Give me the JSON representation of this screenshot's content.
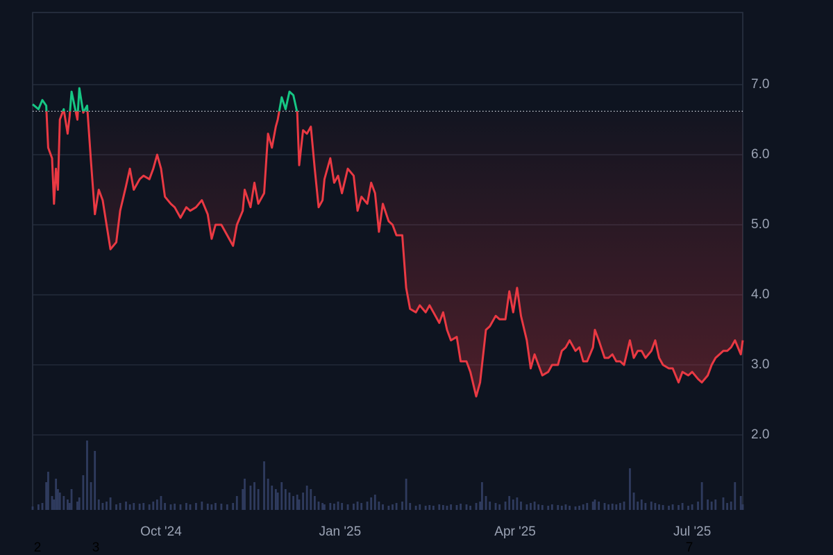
{
  "chart_data": {
    "type": "line",
    "x": [
      0,
      3,
      5,
      7,
      8,
      10,
      11,
      12,
      13,
      14,
      16,
      18,
      19,
      20,
      23,
      24,
      26,
      28,
      30,
      32,
      34,
      36,
      38,
      40,
      43,
      45,
      48,
      50,
      52,
      55,
      57,
      60,
      62,
      64,
      66,
      68,
      71,
      73,
      76,
      79,
      81,
      84,
      87,
      90,
      92,
      94,
      97,
      100,
      103,
      105,
      108,
      109,
      112,
      114,
      116,
      119,
      121,
      123,
      125,
      126,
      128,
      130,
      132,
      134,
      136,
      137,
      139,
      141,
      143,
      145,
      147,
      149,
      150,
      153,
      155,
      157,
      159,
      162,
      165,
      167,
      169,
      172,
      174,
      176,
      178,
      180,
      183,
      185,
      187,
      190,
      192,
      194,
      197,
      199,
      202,
      204,
      206,
      209,
      211,
      213,
      215,
      218,
      220,
      223,
      225,
      228,
      230,
      231,
      233,
      235,
      238,
      240,
      243,
      245,
      247,
      249,
      251,
      254,
      256,
      258,
      260,
      262,
      265,
      267,
      270,
      272,
      274,
      276,
      279,
      281,
      283,
      285,
      288,
      289,
      291,
      294,
      296,
      298,
      300,
      302,
      304,
      307,
      309,
      311,
      313,
      315,
      318,
      320,
      322,
      324,
      327,
      329,
      332,
      334,
      337,
      339,
      342,
      344,
      347,
      349,
      351,
      355,
      357,
      359,
      361,
      364,
      365
    ],
    "series": [
      {
        "values": [
          6.72,
          6.65,
          6.78,
          6.7,
          6.1,
          5.95,
          5.3,
          5.8,
          5.5,
          6.5,
          6.65,
          6.3,
          6.55,
          6.9,
          6.5,
          6.95,
          6.6,
          6.7,
          5.9,
          5.15,
          5.5,
          5.35,
          5.0,
          4.65,
          4.75,
          5.2,
          5.55,
          5.8,
          5.5,
          5.65,
          5.7,
          5.65,
          5.8,
          6.0,
          5.8,
          5.4,
          5.3,
          5.25,
          5.1,
          5.25,
          5.2,
          5.25,
          5.35,
          5.15,
          4.8,
          5.0,
          5.0,
          4.85,
          4.7,
          5.0,
          5.2,
          5.5,
          5.25,
          5.6,
          5.3,
          5.45,
          6.3,
          6.1,
          6.4,
          6.5,
          6.82,
          6.65,
          6.9,
          6.85,
          6.6,
          5.85,
          6.35,
          6.3,
          6.4,
          5.8,
          5.25,
          5.35,
          5.65,
          5.95,
          5.6,
          5.7,
          5.45,
          5.8,
          5.7,
          5.2,
          5.4,
          5.3,
          5.6,
          5.45,
          4.9,
          5.3,
          5.05,
          5.0,
          4.85,
          4.85,
          4.1,
          3.8,
          3.75,
          3.85,
          3.75,
          3.85,
          3.75,
          3.6,
          3.75,
          3.5,
          3.35,
          3.4,
          3.05,
          3.05,
          2.9,
          2.55,
          2.75,
          3.0,
          3.5,
          3.55,
          3.7,
          3.65,
          3.65,
          4.05,
          3.75,
          4.1,
          3.7,
          3.35,
          2.95,
          3.15,
          3.0,
          2.85,
          2.9,
          3.0,
          3.0,
          3.2,
          3.25,
          3.35,
          3.2,
          3.25,
          3.05,
          3.05,
          3.25,
          3.5,
          3.35,
          3.1,
          3.1,
          3.15,
          3.05,
          3.05,
          3.0,
          3.35,
          3.1,
          3.2,
          3.2,
          3.1,
          3.2,
          3.35,
          3.1,
          3.0,
          2.95,
          2.95,
          2.75,
          2.9,
          2.85,
          2.9,
          2.8,
          2.75,
          2.85,
          3.0,
          3.1,
          3.2,
          3.2,
          3.25,
          3.35,
          3.15,
          3.35
        ]
      }
    ],
    "volume": [
      5,
      8,
      10,
      40,
      55,
      20,
      15,
      45,
      30,
      25,
      20,
      15,
      10,
      30,
      12,
      18,
      50,
      100,
      40,
      85,
      15,
      10,
      12,
      18,
      8,
      10,
      12,
      8,
      10,
      9,
      10,
      8,
      12,
      15,
      20,
      10,
      8,
      9,
      8,
      10,
      8,
      10,
      12,
      9,
      8,
      10,
      9,
      8,
      10,
      20,
      30,
      45,
      35,
      40,
      30,
      70,
      45,
      35,
      30,
      25,
      40,
      30,
      25,
      20,
      22,
      15,
      25,
      35,
      30,
      20,
      12,
      10,
      8,
      10,
      9,
      12,
      10,
      8,
      9,
      12,
      10,
      12,
      18,
      22,
      12,
      8,
      6,
      8,
      10,
      12,
      45,
      10,
      6,
      8,
      6,
      7,
      6,
      8,
      7,
      6,
      8,
      7,
      9,
      8,
      6,
      10,
      12,
      40,
      20,
      12,
      10,
      8,
      12,
      20,
      15,
      18,
      12,
      8,
      10,
      12,
      8,
      7,
      6,
      8,
      7,
      6,
      8,
      6,
      5,
      6,
      8,
      10,
      12,
      15,
      12,
      10,
      8,
      9,
      8,
      10,
      12,
      60,
      25,
      12,
      15,
      10,
      12,
      10,
      8,
      7,
      6,
      8,
      7,
      10,
      6,
      8,
      12,
      40,
      15,
      12,
      15,
      18,
      10,
      12,
      40,
      20,
      8
    ],
    "baseline": 6.62,
    "up_color": "#16c784",
    "down_color": "#ea3943",
    "volume_color": "#2f3b5e",
    "xlim": [
      0,
      365
    ],
    "xticks": [
      {
        "value": 66,
        "label": "Oct '24"
      },
      {
        "value": 158,
        "label": "Jan '25"
      },
      {
        "value": 248,
        "label": "Apr '25"
      },
      {
        "value": 339,
        "label": "Jul '25"
      }
    ],
    "ylim": [
      0.93,
      8.03
    ],
    "yticks": [
      {
        "value": 2,
        "label": "2.0"
      },
      {
        "value": 3,
        "label": "3.0"
      },
      {
        "value": 4,
        "label": "4.0"
      },
      {
        "value": 5,
        "label": "5.0"
      },
      {
        "value": 6,
        "label": "6.0"
      },
      {
        "value": 7,
        "label": "7.0"
      }
    ],
    "grid": true,
    "annotations": [
      "2",
      "3",
      "7"
    ]
  }
}
